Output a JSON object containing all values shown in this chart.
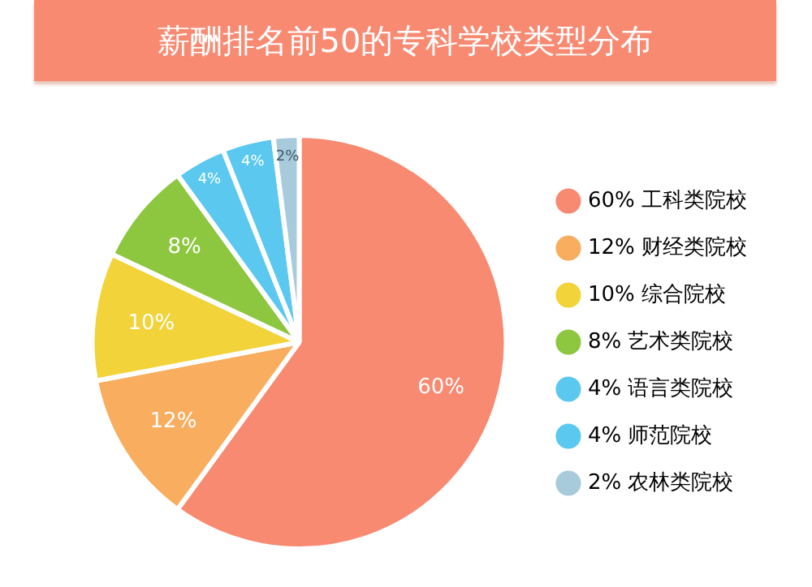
{
  "chart_data": {
    "type": "pie",
    "title": "薪酬排名前50的专科学校类型分布",
    "categories": [
      "工科类院校",
      "财经类院校",
      "综合院校",
      "艺术类院校",
      "语言类院校",
      "师范院校",
      "农林类院校"
    ],
    "values": [
      60,
      12,
      10,
      8,
      4,
      4,
      2
    ],
    "value_labels": [
      "60%",
      "12%",
      "10%",
      "8%",
      "4%",
      "4%",
      "2%"
    ],
    "colors": [
      "#f88a72",
      "#f9ad5e",
      "#f2d33a",
      "#8dc63f",
      "#5bc8f0",
      "#5bc8f0",
      "#a8cbdc"
    ],
    "legend": "right"
  }
}
